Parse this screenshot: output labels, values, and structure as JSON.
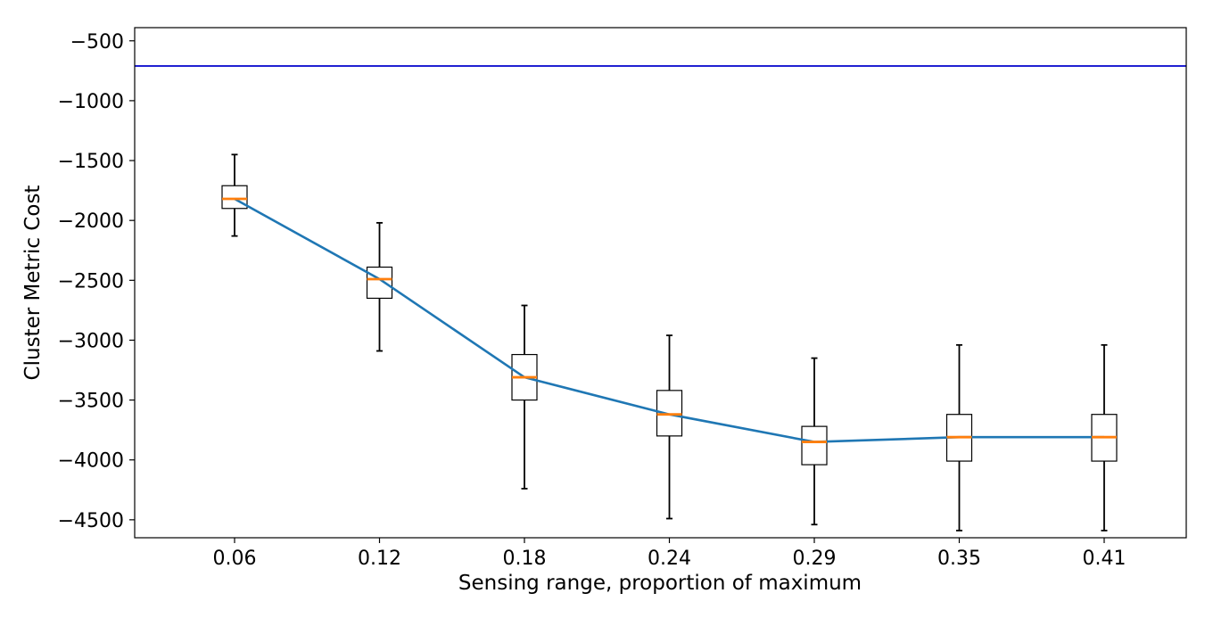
{
  "chart_data": {
    "type": "box",
    "title": "",
    "xlabel": "Sensing range, proportion of maximum",
    "ylabel": "Cluster Metric Cost",
    "categories": [
      "0.06",
      "0.12",
      "0.18",
      "0.24",
      "0.29",
      "0.35",
      "0.41"
    ],
    "ylim": [
      -4650,
      -390
    ],
    "yticks": [
      -500,
      -1000,
      -1500,
      -2000,
      -2500,
      -3000,
      -3500,
      -4000,
      -4500
    ],
    "ytick_labels": [
      "−500",
      "−1000",
      "−1500",
      "−2000",
      "−2500",
      "−3000",
      "−3500",
      "−4000",
      "−4500"
    ],
    "boxes": [
      {
        "whisker_low": -2130,
        "q1": -1900,
        "median": -1820,
        "q3": -1710,
        "whisker_high": -1450
      },
      {
        "whisker_low": -3090,
        "q1": -2650,
        "median": -2490,
        "q3": -2390,
        "whisker_high": -2020
      },
      {
        "whisker_low": -4240,
        "q1": -3500,
        "median": -3310,
        "q3": -3120,
        "whisker_high": -2710
      },
      {
        "whisker_low": -4490,
        "q1": -3800,
        "median": -3620,
        "q3": -3420,
        "whisker_high": -2960
      },
      {
        "whisker_low": -4540,
        "q1": -4040,
        "median": -3850,
        "q3": -3720,
        "whisker_high": -3150
      },
      {
        "whisker_low": -4590,
        "q1": -4010,
        "median": -3810,
        "q3": -3620,
        "whisker_high": -3040
      },
      {
        "whisker_low": -4590,
        "q1": -4010,
        "median": -3810,
        "q3": -3620,
        "whisker_high": -3040
      }
    ],
    "median_line": {
      "values": [
        -1820,
        -2490,
        -3310,
        -3620,
        -3850,
        -3810,
        -3810
      ],
      "color": "#1f77b4"
    },
    "reference_line": {
      "y": -710,
      "color": "#0000cc"
    },
    "colors": {
      "median": "#ff7f0e",
      "box": "#000000",
      "whisker": "#000000"
    },
    "grid": false,
    "legend": "none"
  }
}
